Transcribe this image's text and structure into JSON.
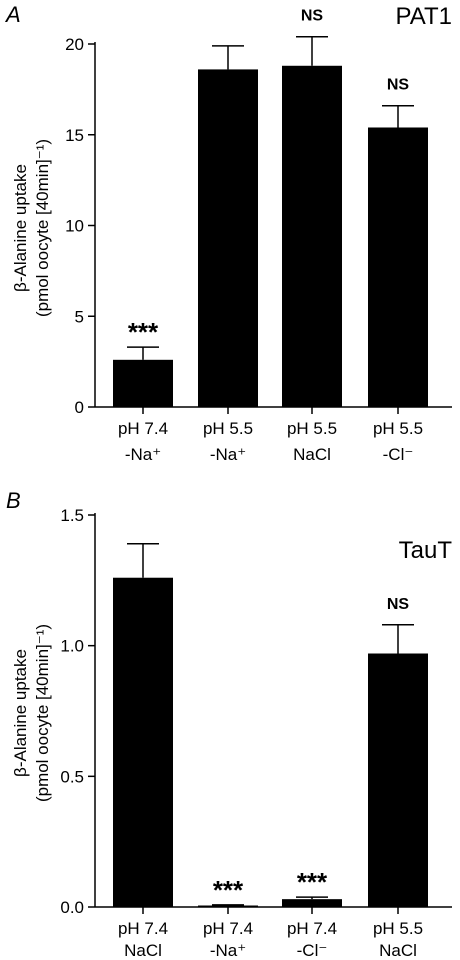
{
  "chart_data": [
    {
      "type": "bar",
      "panel": "A",
      "title": "PAT1",
      "ylabel_line1": "β-Alanine uptake",
      "ylabel_line2": "(pmol oocyte [40min]⁻¹)",
      "ylim": [
        0,
        20
      ],
      "yticks": [
        "0",
        "5",
        "10",
        "15",
        "20"
      ],
      "yticks_values": [
        0,
        5,
        10,
        15,
        20
      ],
      "categories": [
        {
          "line1": "pH 7.4",
          "line2": "-Na⁺"
        },
        {
          "line1": "pH 5.5",
          "line2": "-Na⁺"
        },
        {
          "line1": "pH 5.5",
          "line2": "NaCl"
        },
        {
          "line1": "pH 5.5",
          "line2": "-Cl⁻"
        }
      ],
      "values": [
        2.6,
        18.6,
        18.8,
        15.4
      ],
      "errors": [
        0.7,
        1.3,
        1.6,
        1.2
      ],
      "annotations": [
        "***",
        "",
        "NS",
        "NS"
      ],
      "bar_color": "#000000"
    },
    {
      "type": "bar",
      "panel": "B",
      "title": "TauT",
      "ylabel_line1": "β-Alanine uptake",
      "ylabel_line2": "(pmol oocyte [40min]⁻¹)",
      "ylim": [
        0,
        1.5
      ],
      "yticks": [
        "0.0",
        "0.5",
        "1.0",
        "1.5"
      ],
      "yticks_values": [
        0,
        0.5,
        1.0,
        1.5
      ],
      "categories": [
        {
          "line1": "pH 7.4",
          "line2": "NaCl"
        },
        {
          "line1": "pH 7.4",
          "line2": "-Na⁺"
        },
        {
          "line1": "pH 7.4",
          "line2": "-Cl⁻"
        },
        {
          "line1": "pH 5.5",
          "line2": "NaCl"
        }
      ],
      "values": [
        1.26,
        0.005,
        0.03,
        0.97
      ],
      "errors": [
        0.13,
        0.003,
        0.008,
        0.11
      ],
      "annotations": [
        "",
        "***",
        "***",
        "NS"
      ],
      "bar_color": "#000000"
    }
  ]
}
